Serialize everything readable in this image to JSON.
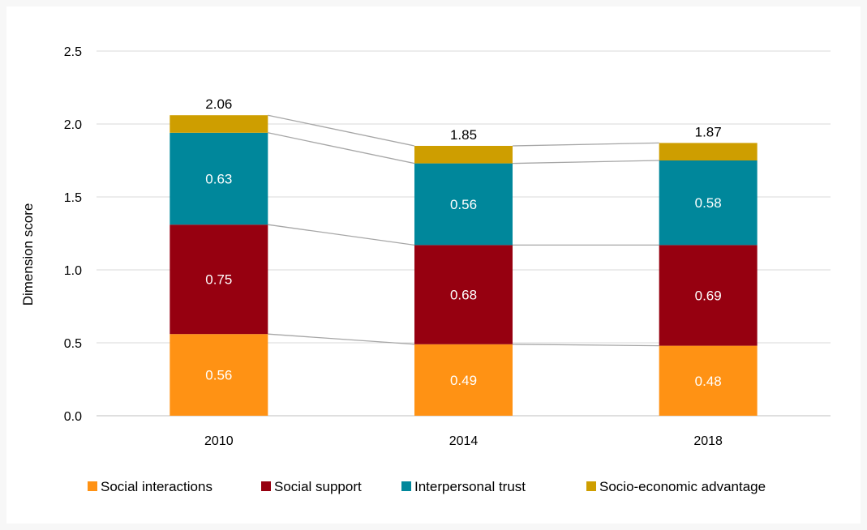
{
  "chart_data": {
    "type": "bar",
    "stacked": true,
    "categories": [
      "2010",
      "2014",
      "2018"
    ],
    "series": [
      {
        "name": "Social interactions",
        "color": "#FF9214",
        "values": [
          0.56,
          0.49,
          0.48
        ]
      },
      {
        "name": "Social support",
        "color": "#960010",
        "values": [
          0.75,
          0.68,
          0.69
        ]
      },
      {
        "name": "Interpersonal trust",
        "color": "#00879B",
        "values": [
          0.63,
          0.56,
          0.58
        ]
      },
      {
        "name": "Socio-economic advantage",
        "color": "#CE9E00",
        "values": [
          0.12,
          0.12,
          0.12
        ]
      }
    ],
    "totals": [
      "2.06",
      "1.85",
      "1.87"
    ],
    "segment_labels": [
      [
        "0.56",
        "0.49",
        "0.48"
      ],
      [
        "0.75",
        "0.68",
        "0.69"
      ],
      [
        "0.63",
        "0.56",
        "0.58"
      ]
    ],
    "ylabel": "Dimension score",
    "xlabel": "",
    "ylim": [
      0,
      2.5
    ],
    "yticks": [
      "0.0",
      "0.5",
      "1.0",
      "1.5",
      "2.0",
      "2.5"
    ],
    "grid": true,
    "series_lines": true,
    "legend_position": "bottom"
  }
}
